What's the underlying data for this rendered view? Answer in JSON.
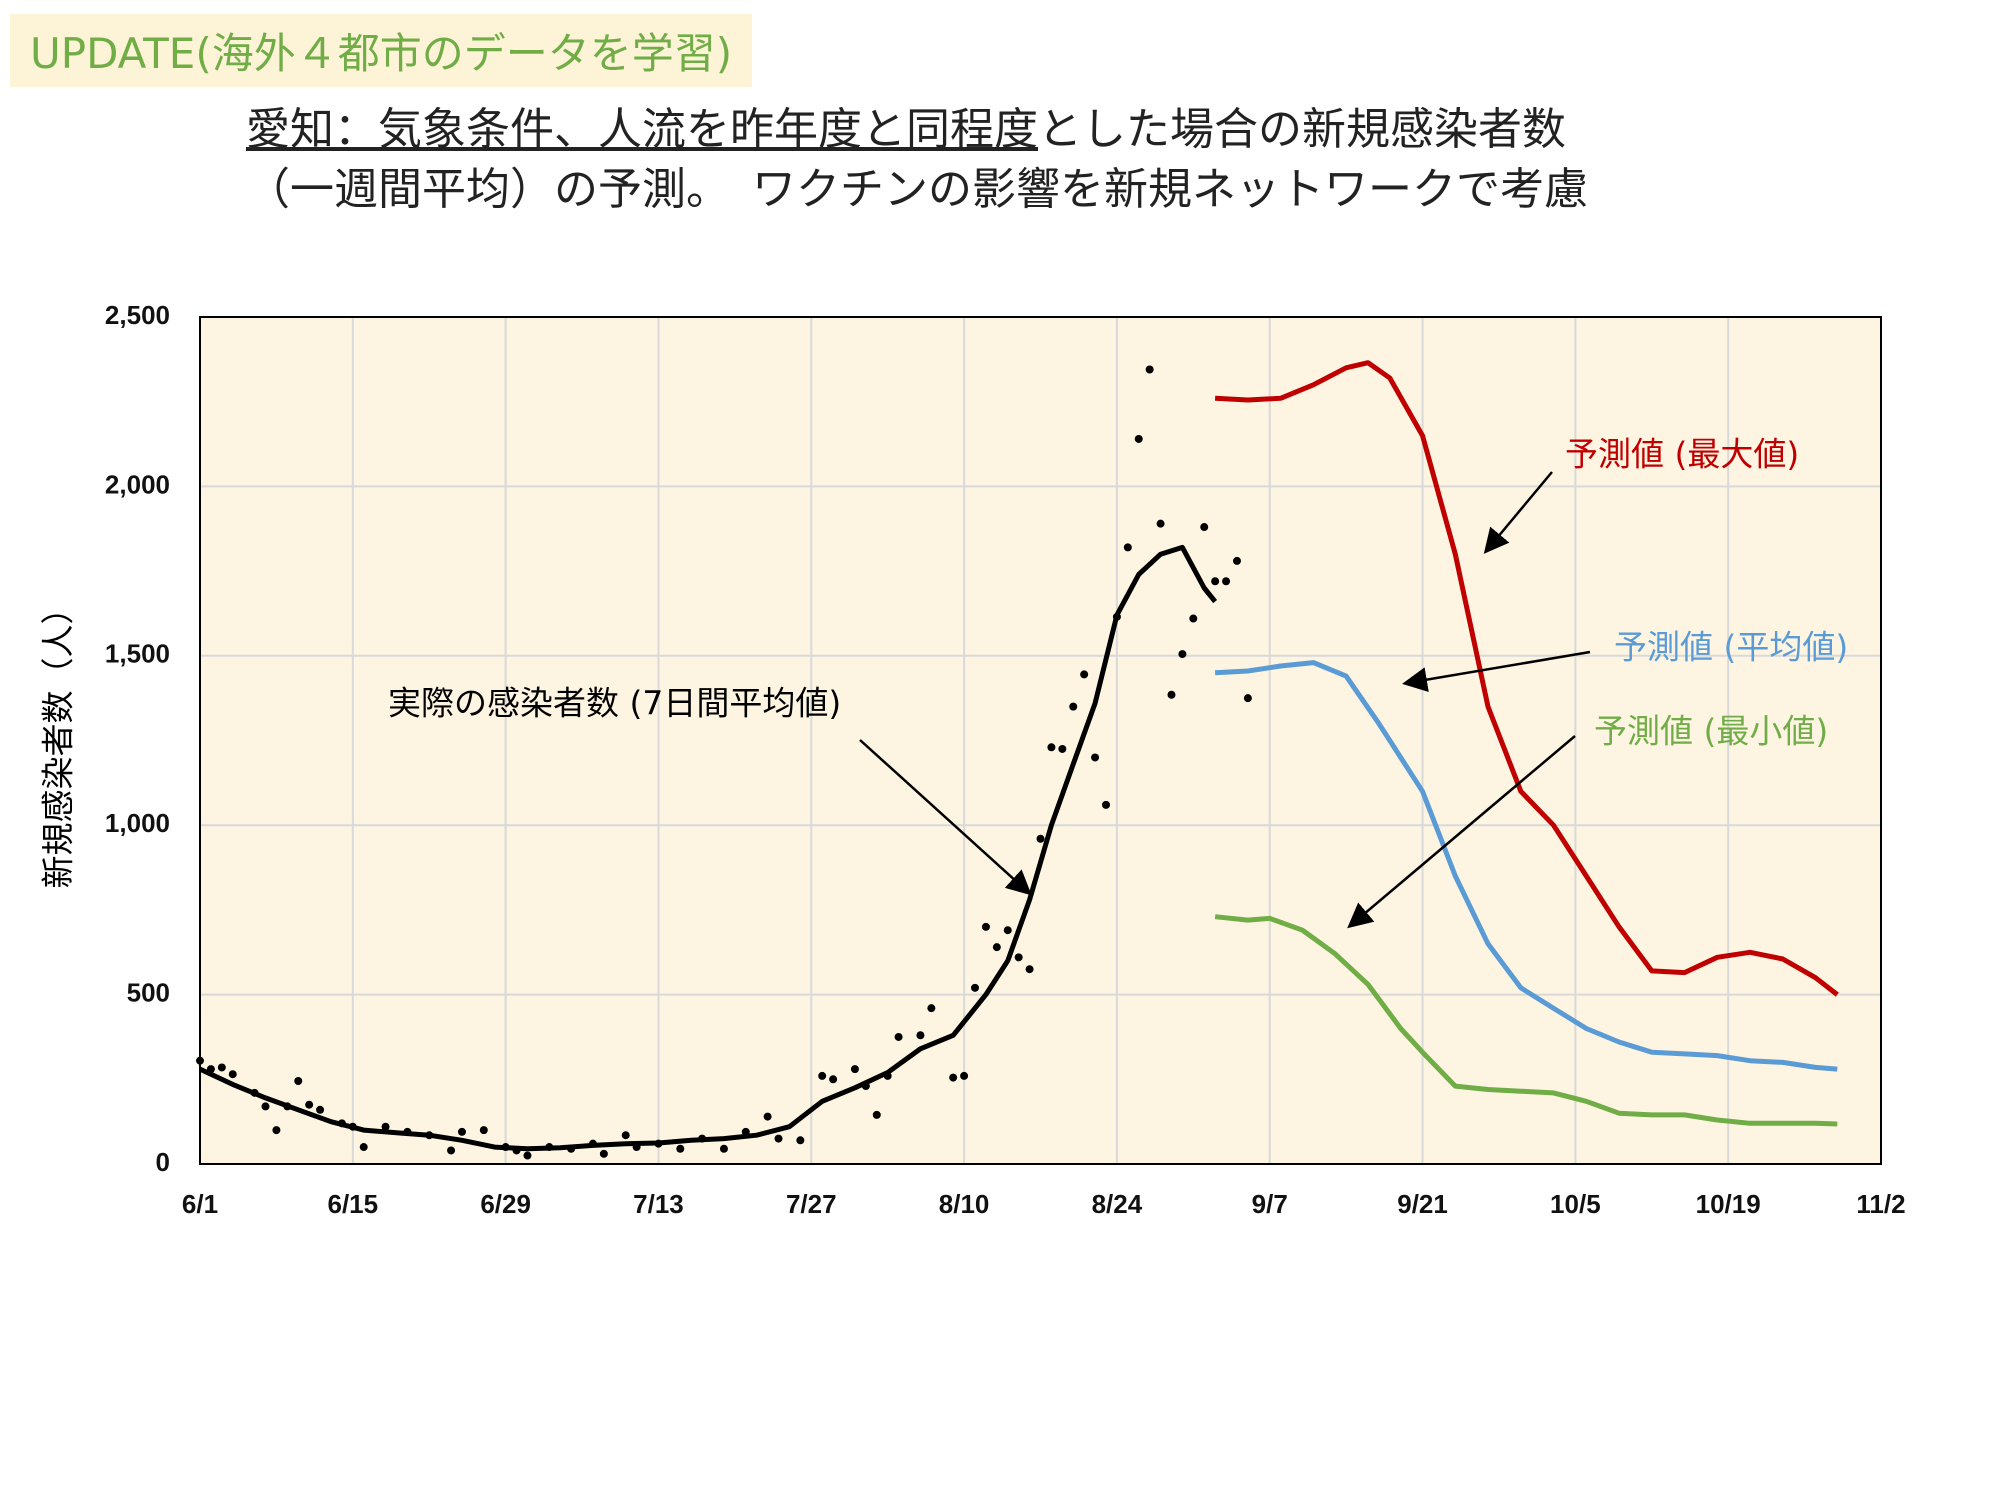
{
  "header": "UPDATE(海外４都市のデータを学習)",
  "title": [
    "愛知：気象条件、人流を昨年度と同程度",
    "とした場合の新規感染者数",
    "（一週間平均）の予測。　ワクチンの影響を新規ネットワークで考慮"
  ],
  "chart_data": {
    "type": "line",
    "y_label": "新規感染者数（人）",
    "xlim": [
      "6/1",
      "11/2"
    ],
    "xticks": [
      "6/1",
      "6/15",
      "6/29",
      "7/13",
      "7/27",
      "8/10",
      "8/24",
      "9/7",
      "9/21",
      "10/5",
      "10/19",
      "11/2"
    ],
    "ylim": [
      0,
      2500
    ],
    "yticks": [
      0,
      500,
      {
        "value": 1000,
        "label": "1,000"
      },
      {
        "value": 1500,
        "label": "1,500"
      },
      {
        "value": 2000,
        "label": "2,000"
      },
      {
        "value": 2500,
        "label": "2,500"
      }
    ],
    "grid": true,
    "series": [
      {
        "name": "実際の感染者数 (7日間平均値)",
        "color": "#000000",
        "x": [
          "6/1",
          "6/4",
          "6/7",
          "6/10",
          "6/13",
          "6/16",
          "6/19",
          "6/22",
          "6/25",
          "6/28",
          "7/1",
          "7/4",
          "7/7",
          "7/10",
          "7/13",
          "7/16",
          "7/19",
          "7/22",
          "7/25",
          "7/28",
          "7/31",
          "8/3",
          "8/6",
          "8/9",
          "8/12",
          "8/14",
          "8/16",
          "8/18",
          "8/20",
          "8/22",
          "8/24",
          "8/26",
          "8/28",
          "8/30",
          "9/1",
          "9/2"
        ],
        "values": [
          280,
          235,
          195,
          160,
          125,
          100,
          92,
          85,
          70,
          50,
          45,
          48,
          55,
          60,
          62,
          70,
          75,
          85,
          110,
          185,
          225,
          270,
          340,
          380,
          500,
          600,
          780,
          1000,
          1180,
          1360,
          1620,
          1740,
          1800,
          1820,
          1700,
          1660
        ]
      },
      {
        "name": "予測値 (最大値)",
        "color": "#c00000",
        "x": [
          "9/2",
          "9/5",
          "9/8",
          "9/11",
          "9/14",
          "9/16",
          "9/18",
          "9/21",
          "9/24",
          "9/27",
          "9/30",
          "10/3",
          "10/6",
          "10/9",
          "10/12",
          "10/15",
          "10/18",
          "10/21",
          "10/24",
          "10/27",
          "10/29"
        ],
        "values": [
          2260,
          2255,
          2260,
          2300,
          2350,
          2365,
          2320,
          2150,
          1800,
          1350,
          1100,
          1000,
          850,
          700,
          570,
          565,
          610,
          625,
          605,
          550,
          500
        ]
      },
      {
        "name": "予測値 (平均値)",
        "color": "#5b9bd5",
        "x": [
          "9/2",
          "9/5",
          "9/8",
          "9/11",
          "9/14",
          "9/17",
          "9/21",
          "9/24",
          "9/27",
          "9/30",
          "10/3",
          "10/6",
          "10/9",
          "10/12",
          "10/15",
          "10/18",
          "10/21",
          "10/24",
          "10/27",
          "10/29"
        ],
        "values": [
          1450,
          1455,
          1470,
          1480,
          1440,
          1300,
          1100,
          850,
          650,
          520,
          460,
          400,
          360,
          330,
          325,
          320,
          305,
          300,
          285,
          280
        ]
      },
      {
        "name": "予測値 (最小値)",
        "color": "#70ad47",
        "x": [
          "9/2",
          "9/5",
          "9/7",
          "9/10",
          "9/13",
          "9/16",
          "9/19",
          "9/21",
          "9/24",
          "9/27",
          "9/30",
          "10/3",
          "10/6",
          "10/9",
          "10/12",
          "10/15",
          "10/18",
          "10/21",
          "10/24",
          "10/27",
          "10/29"
        ],
        "values": [
          730,
          720,
          725,
          690,
          620,
          530,
          400,
          330,
          230,
          220,
          215,
          210,
          185,
          150,
          145,
          145,
          130,
          120,
          120,
          120,
          118
        ]
      }
    ],
    "points": {
      "color": "#000000",
      "x": [
        "6/1",
        "6/2",
        "6/3",
        "6/4",
        "6/6",
        "6/7",
        "6/8",
        "6/9",
        "6/10",
        "6/11",
        "6/12",
        "6/14",
        "6/15",
        "6/16",
        "6/18",
        "6/20",
        "6/22",
        "6/24",
        "6/25",
        "6/27",
        "6/29",
        "6/30",
        "7/1",
        "7/3",
        "7/5",
        "7/7",
        "7/8",
        "7/10",
        "7/11",
        "7/13",
        "7/15",
        "7/17",
        "7/19",
        "7/21",
        "7/23",
        "7/24",
        "7/26",
        "7/28",
        "7/29",
        "7/31",
        "8/1",
        "8/2",
        "8/3",
        "8/4",
        "8/6",
        "8/7",
        "8/9",
        "8/10",
        "8/11",
        "8/12",
        "8/13",
        "8/14",
        "8/15",
        "8/16",
        "8/17",
        "8/18",
        "8/19",
        "8/20",
        "8/21",
        "8/22",
        "8/23",
        "8/24",
        "8/25",
        "8/26",
        "8/27",
        "8/28",
        "8/29",
        "8/30",
        "8/31",
        "9/1",
        "9/2",
        "9/3",
        "9/4",
        "9/5"
      ],
      "values": [
        305,
        280,
        285,
        265,
        210,
        170,
        100,
        170,
        245,
        175,
        160,
        120,
        110,
        50,
        110,
        95,
        85,
        40,
        95,
        100,
        50,
        40,
        25,
        50,
        45,
        60,
        30,
        85,
        50,
        60,
        45,
        75,
        45,
        95,
        140,
        75,
        70,
        260,
        250,
        280,
        230,
        145,
        260,
        375,
        380,
        460,
        255,
        260,
        520,
        700,
        640,
        690,
        610,
        575,
        960,
        1230,
        1225,
        1350,
        1445,
        1200,
        1060,
        1615,
        1820,
        2140,
        2345,
        1890,
        1385,
        1505,
        1610,
        1880,
        1720,
        1720,
        1780,
        1375
      ]
    }
  }
}
